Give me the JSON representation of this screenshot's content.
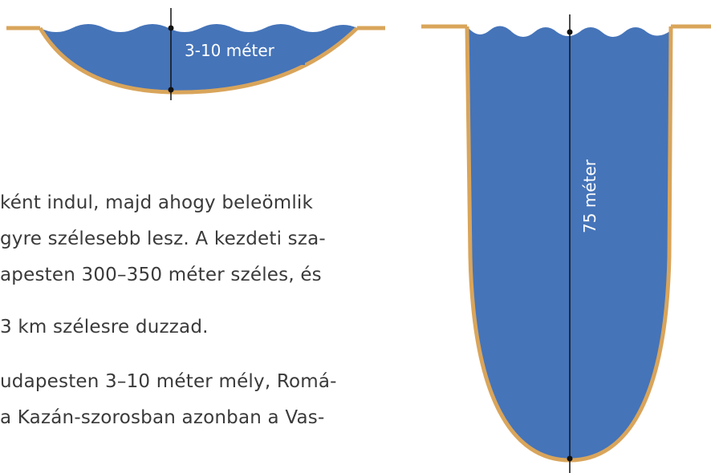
{
  "shallow_label": "3-10 méter",
  "deep_label": "75 méter",
  "paragraph": {
    "lines": [
      "ként indul, majd ahogy beleömlik",
      "gyre szélesebb lesz. A kezdeti sza-",
      "apesten 300–350 méter széles, és",
      "3 km szélesre duzzad.",
      "udapesten 3–10 méter mély, Romá-",
      "a Kazán-szorosban azonban a Vas-"
    ]
  }
}
